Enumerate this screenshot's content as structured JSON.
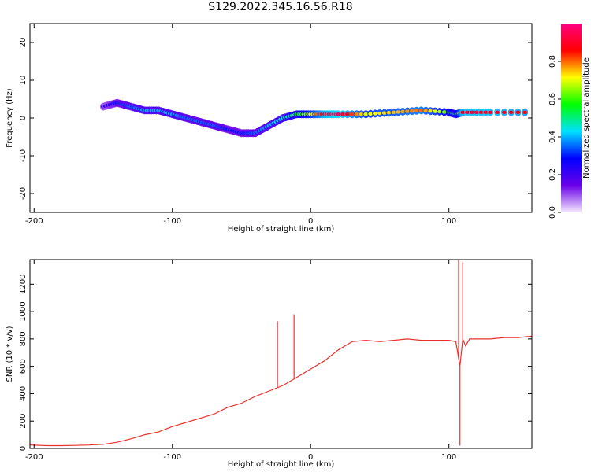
{
  "title": "S129.2022.345.16.56.R18",
  "chart_data": [
    {
      "type": "heatmap",
      "title": "",
      "xlabel": "Height of straight line (km)",
      "ylabel": "Frequency (Hz)",
      "xlim": [
        -203,
        160
      ],
      "ylim": [
        -25,
        25
      ],
      "xticks": [
        -200,
        -100,
        0,
        100
      ],
      "yticks": [
        -20,
        -10,
        0,
        10,
        20
      ],
      "colorbar": {
        "label": "Normalized spectral amplitude",
        "range": [
          0.0,
          1.0
        ],
        "ticks": [
          0.0,
          0.2,
          0.4,
          0.6,
          0.8
        ],
        "tick_labels": [
          "0.0",
          "0.2",
          "0.4",
          "0.6",
          "0.8"
        ],
        "colors": [
          "#f4e9ff",
          "#6a00e8",
          "#0000ff",
          "#00e0ff",
          "#00ff00",
          "#ffff00",
          "#ff0000",
          "#ff0080"
        ]
      },
      "ridge": {
        "x": [
          -150,
          -140,
          -130,
          -120,
          -110,
          -100,
          -90,
          -80,
          -70,
          -60,
          -50,
          -40,
          -30,
          -20,
          -10,
          0,
          10,
          20,
          40,
          60,
          80,
          100,
          105,
          110,
          130,
          160
        ],
        "y": [
          3,
          4,
          3,
          2,
          2,
          1,
          0,
          -1,
          -2,
          -3,
          -4,
          -4,
          -2,
          0,
          1,
          1,
          1,
          1,
          1,
          1.5,
          2,
          1.5,
          1,
          1.5,
          1.5,
          1.5
        ],
        "amplitude": [
          0.2,
          0.3,
          0.35,
          0.4,
          0.4,
          0.4,
          0.35,
          0.35,
          0.35,
          0.3,
          0.3,
          0.35,
          0.4,
          0.45,
          0.55,
          0.7,
          0.9,
          0.95,
          0.7,
          0.75,
          0.8,
          0.6,
          0.5,
          0.9,
          0.9,
          0.85
        ]
      }
    },
    {
      "type": "line",
      "title": "",
      "xlabel": "Height of straight line (km)",
      "ylabel": "SNR (10 * v/v)",
      "xlim": [
        -203,
        160
      ],
      "ylim": [
        0,
        1380
      ],
      "xticks": [
        -200,
        -100,
        0,
        100
      ],
      "yticks": [
        0,
        200,
        400,
        600,
        800,
        1000,
        1200
      ],
      "color": "#e8322e",
      "series": [
        {
          "x": [
            -203,
            -190,
            -180,
            -170,
            -160,
            -150,
            -140,
            -130,
            -120,
            -110,
            -100,
            -90,
            -80,
            -70,
            -60,
            -50,
            -40,
            -30,
            -20,
            -10,
            0,
            10,
            20,
            30,
            40,
            50,
            60,
            70,
            80,
            90,
            100,
            105,
            108,
            110,
            112,
            115,
            120,
            130,
            140,
            150,
            160
          ],
          "y": [
            25,
            20,
            20,
            22,
            25,
            30,
            45,
            70,
            100,
            120,
            160,
            190,
            220,
            250,
            300,
            330,
            380,
            420,
            460,
            520,
            580,
            640,
            720,
            780,
            790,
            780,
            790,
            800,
            790,
            790,
            790,
            780,
            600,
            800,
            750,
            800,
            800,
            800,
            810,
            810,
            820
          ]
        }
      ],
      "spikes": [
        {
          "x": -24,
          "y": 930
        },
        {
          "x": -12,
          "y": 980
        },
        {
          "x": 107,
          "y": 1380
        },
        {
          "x": 110,
          "y": 1360
        },
        {
          "x": 108,
          "y": 20
        }
      ]
    }
  ]
}
